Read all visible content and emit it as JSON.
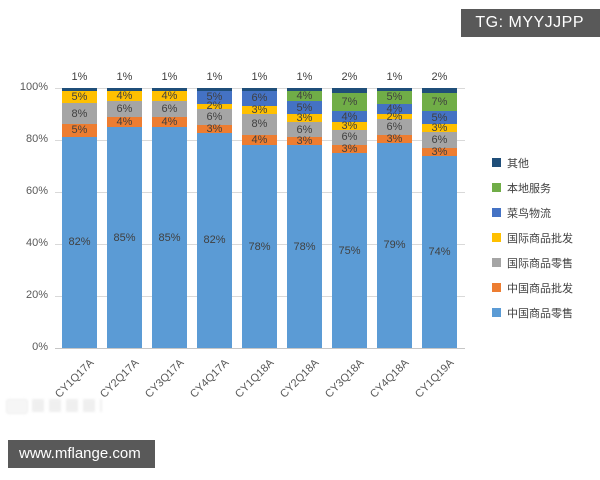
{
  "badge": {
    "text": "TG: MYYJJPP"
  },
  "footer": {
    "url": "www.mflange.com"
  },
  "chart_data": {
    "type": "stacked-bar-100",
    "title": "",
    "xlabel": "",
    "ylabel": "",
    "categories": [
      "CY1Q17A",
      "CY2Q17A",
      "CY3Q17A",
      "CY4Q17A",
      "CY1Q18A",
      "CY2Q18A",
      "CY3Q18A",
      "CY4Q18A",
      "CY1Q19A"
    ],
    "series": [
      {
        "name": "中国商品零售",
        "color": "#5B9BD5",
        "values": [
          82,
          85,
          85,
          82,
          78,
          78,
          75,
          79,
          74
        ]
      },
      {
        "name": "中国商品批发",
        "color": "#ED7D31",
        "values": [
          5,
          4,
          4,
          3,
          4,
          3,
          3,
          3,
          3
        ]
      },
      {
        "name": "国际商品零售",
        "color": "#A5A5A5",
        "values": [
          8,
          6,
          6,
          6,
          8,
          6,
          6,
          6,
          6
        ]
      },
      {
        "name": "国际商品批发",
        "color": "#FFC000",
        "values": [
          5,
          4,
          4,
          2,
          3,
          3,
          3,
          2,
          3
        ]
      },
      {
        "name": "菜鸟物流",
        "color": "#4472C4",
        "values": [
          0,
          0,
          0,
          5,
          6,
          5,
          4,
          4,
          5
        ]
      },
      {
        "name": "本地服务",
        "color": "#70AD47",
        "values": [
          0,
          0,
          0,
          0,
          0,
          4,
          7,
          5,
          7
        ]
      },
      {
        "name": "其他",
        "color": "#1F4E79",
        "values": [
          1,
          1,
          1,
          1,
          1,
          1,
          2,
          1,
          2
        ]
      }
    ],
    "top_labels": [
      "1%",
      "1%",
      "1%",
      "1%",
      "1%",
      "1%",
      "2%",
      "1%",
      "2%"
    ],
    "yticks": [
      "0%",
      "20%",
      "40%",
      "60%",
      "80%",
      "100%"
    ],
    "ylim": [
      0,
      100
    ],
    "grid": true,
    "legend_position": "right",
    "label_color": "#404040",
    "tick_color": "#595959",
    "gridline_color": "#d9d9d9"
  }
}
